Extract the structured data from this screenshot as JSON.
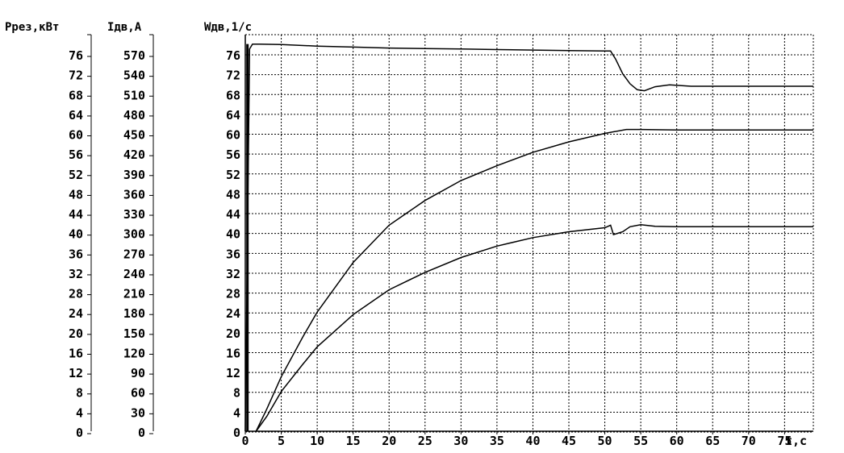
{
  "chart_data": {
    "type": "line",
    "headers": {
      "p_axis": "Pрез,кВт",
      "i_axis": "Iдв,А",
      "w_axis": "Wдв,1/с",
      "x_axis": "t,с"
    },
    "axes": {
      "p_ticks": [
        "76",
        "72",
        "68",
        "64",
        "60",
        "56",
        "52",
        "48",
        "44",
        "40",
        "36",
        "32",
        "28",
        "24",
        "20",
        "16",
        "12",
        "8",
        "4",
        "0"
      ],
      "i_ticks": [
        "570",
        "540",
        "510",
        "480",
        "450",
        "420",
        "390",
        "360",
        "330",
        "300",
        "270",
        "240",
        "210",
        "180",
        "150",
        "120",
        "90",
        "60",
        "30",
        "0"
      ],
      "w_ticks": [
        "76",
        "72",
        "68",
        "64",
        "60",
        "56",
        "52",
        "48",
        "44",
        "40",
        "36",
        "32",
        "28",
        "24",
        "20",
        "16",
        "12",
        "8",
        "4",
        "0"
      ],
      "x_ticks": [
        "0",
        "5",
        "10",
        "15",
        "20",
        "25",
        "30",
        "35",
        "40",
        "45",
        "50",
        "55",
        "60",
        "65",
        "70",
        "75"
      ],
      "x_range": [
        0,
        79
      ],
      "y_range": [
        0,
        78
      ],
      "grid": true
    },
    "series": [
      {
        "x": [
          0,
          0.6,
          1.0,
          2,
          5,
          10,
          15,
          20,
          25,
          30,
          35,
          40,
          45,
          50,
          50.8,
          51.5,
          52.5,
          53.5,
          54.5,
          55.5,
          57,
          59,
          62,
          79
        ],
        "y": [
          0,
          77,
          78,
          78,
          77.9,
          77.6,
          77.4,
          77.2,
          77.1,
          77,
          76.9,
          76.8,
          76.7,
          76.6,
          76.6,
          75,
          72,
          70,
          68.8,
          68.6,
          69.4,
          69.8,
          69.5,
          69.5
        ]
      },
      {
        "x": [
          1.5,
          3,
          5,
          8,
          10,
          15,
          20,
          25,
          30,
          35,
          40,
          45,
          50,
          53,
          55,
          60,
          79
        ],
        "y": [
          0,
          4.5,
          11,
          19,
          24,
          34,
          41.5,
          46.5,
          50.5,
          53.5,
          56.2,
          58.3,
          60,
          60.8,
          60.8,
          60.7,
          60.7
        ]
      },
      {
        "x": [
          1.5,
          3,
          5,
          8,
          10,
          15,
          20,
          25,
          30,
          35,
          40,
          45,
          50,
          50.8,
          51.2,
          52.5,
          53.5,
          55,
          57,
          60,
          79
        ],
        "y": [
          0,
          3,
          8,
          13.5,
          17,
          23.5,
          28.5,
          32,
          35,
          37.3,
          39,
          40.2,
          41,
          41.5,
          39.6,
          40.2,
          41.2,
          41.6,
          41.3,
          41.2,
          41.2
        ]
      }
    ],
    "drive_spike": {
      "x": 0.3,
      "y_top": 78,
      "y_bottom": 0
    }
  }
}
